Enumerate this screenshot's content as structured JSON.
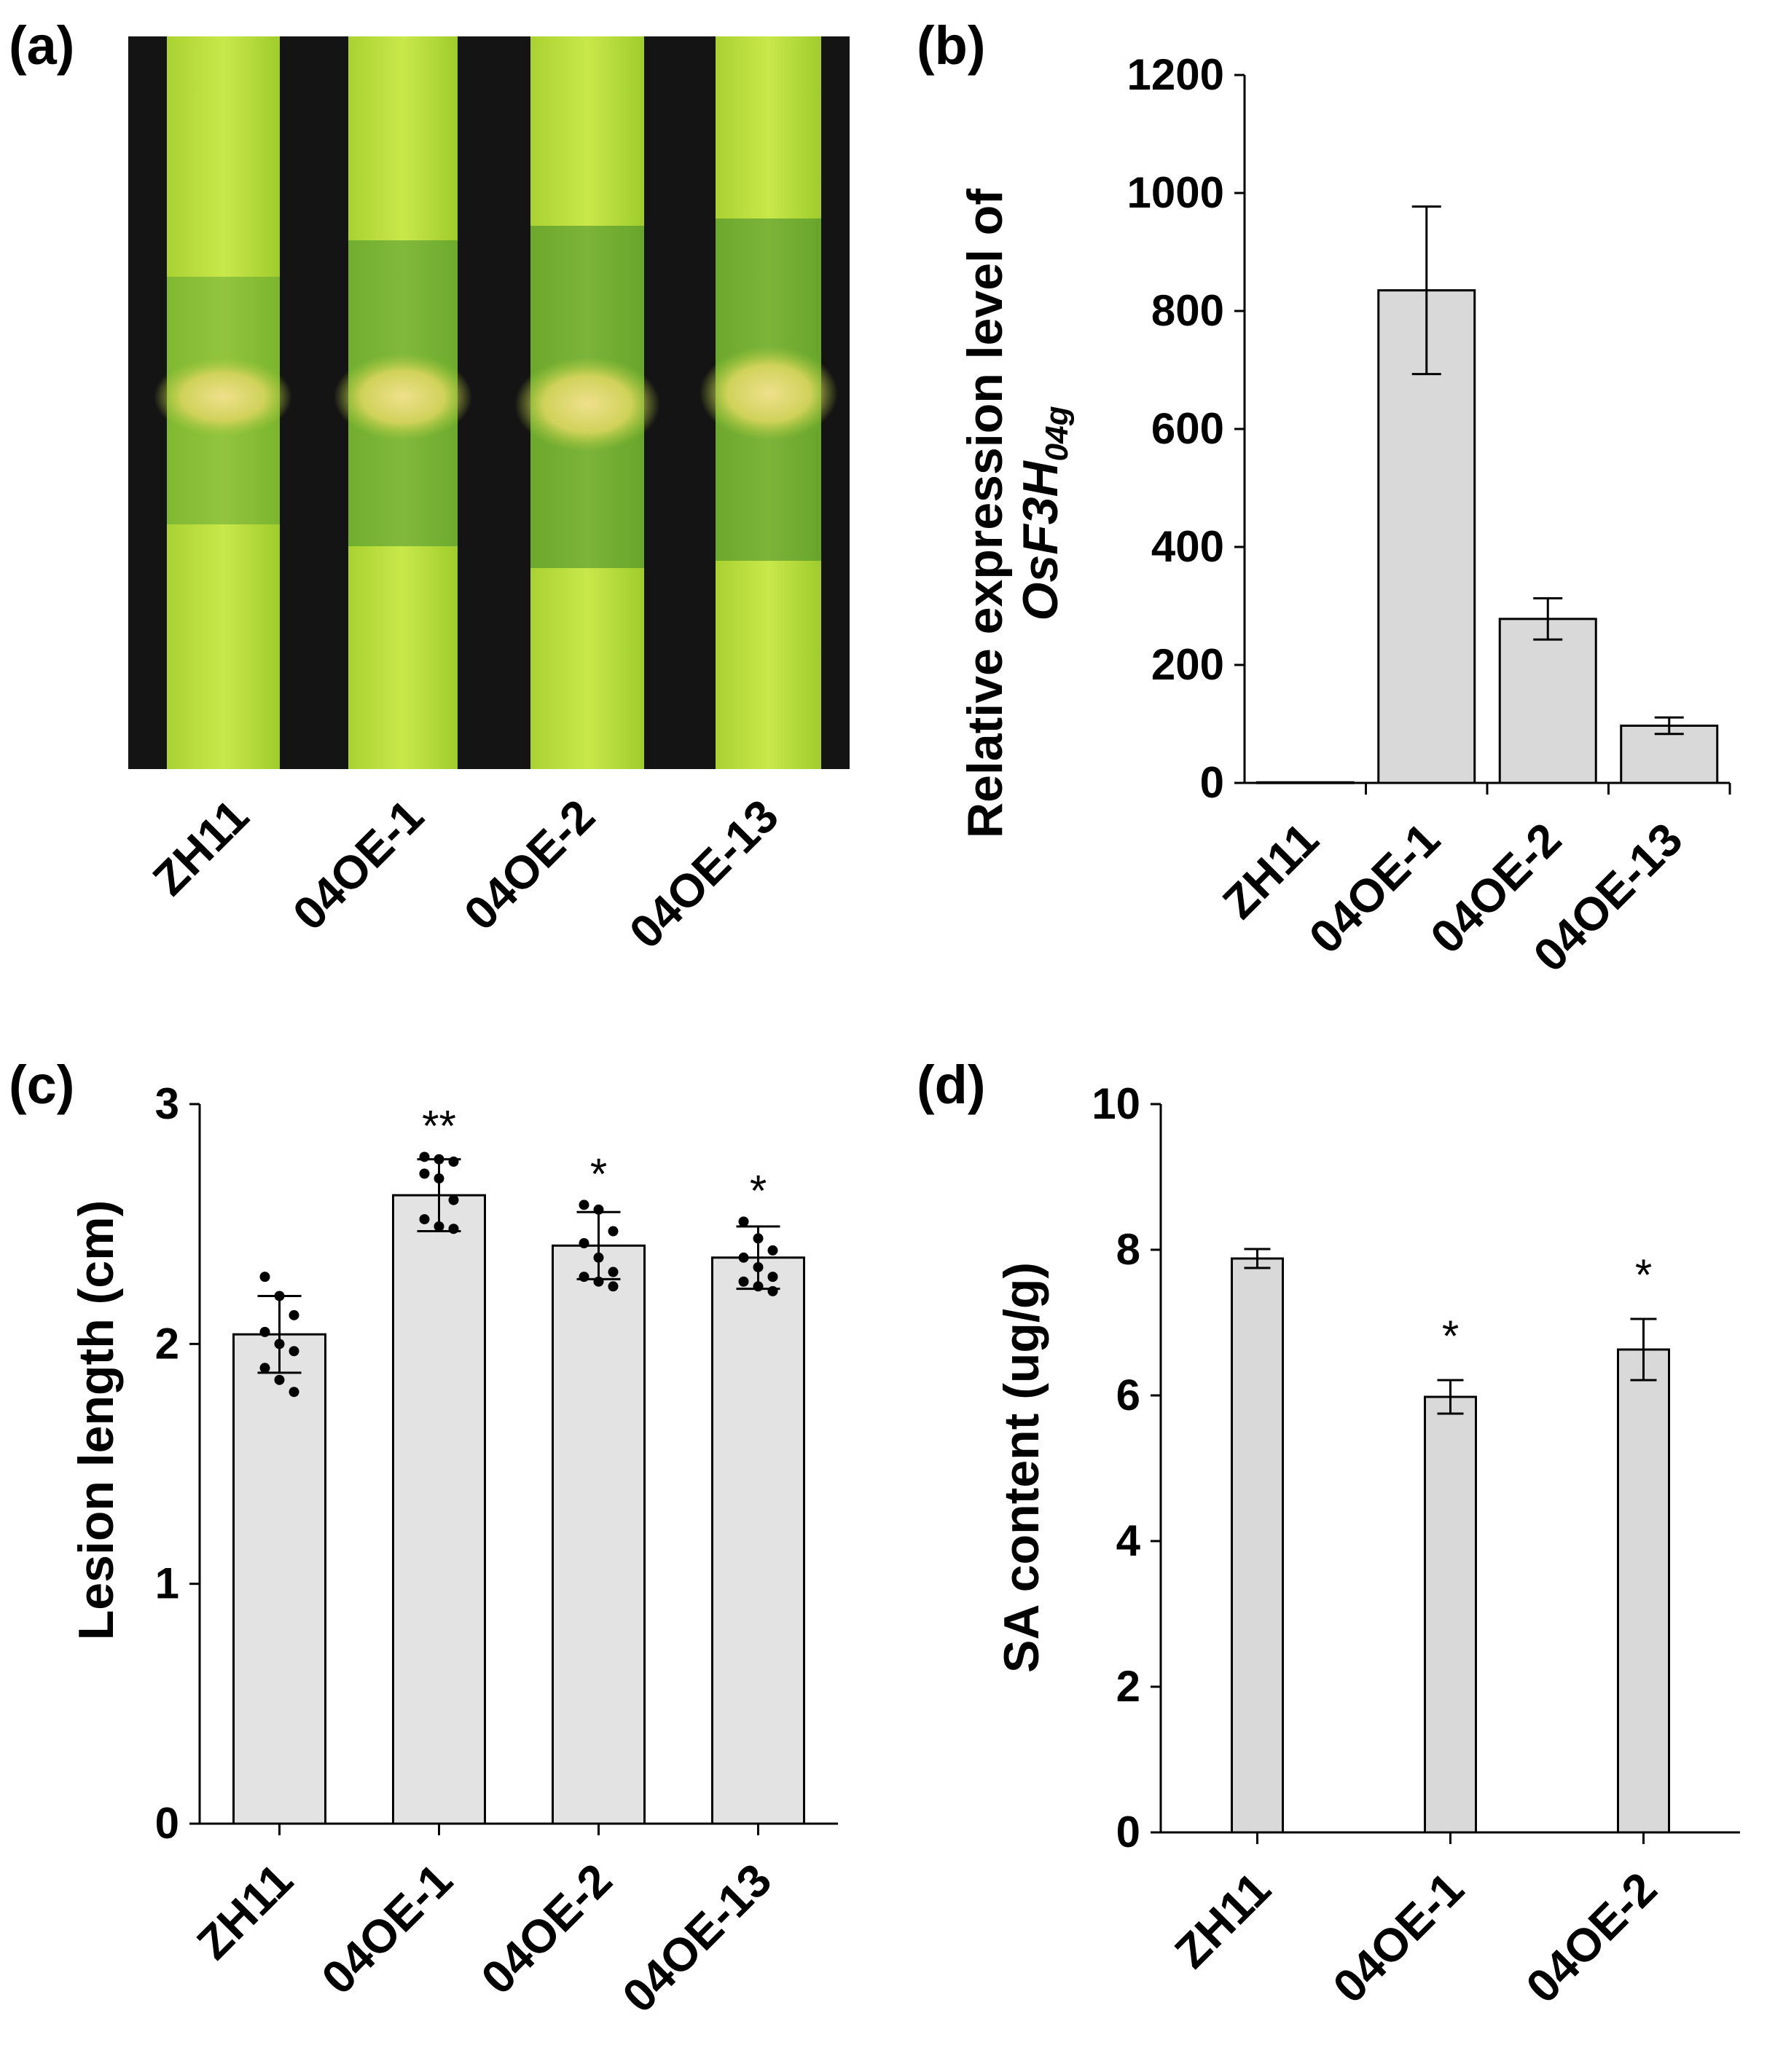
{
  "panels": {
    "a": {
      "label": "(a)",
      "categories": [
        "ZH11",
        "04OE-1",
        "04OE-2",
        "04OE-13"
      ]
    },
    "b": {
      "label": "(b)"
    },
    "c": {
      "label": "(c)"
    },
    "d": {
      "label": "(d)"
    }
  },
  "colors": {
    "bar_fill": "#d9d9d9",
    "bar_fill_c": "#e3e3e3",
    "axis": "#000000",
    "leaf_light": "#c8e63c",
    "leaf_dark": "#1f6a2a",
    "lesion": "#e8d77a",
    "background_strip": "#141414"
  },
  "chart_data": [
    {
      "id": "b",
      "type": "bar",
      "categories": [
        "ZH11",
        "04OE-1",
        "04OE-2",
        "04OE-13"
      ],
      "values": [
        1,
        835,
        278,
        97
      ],
      "errors": [
        1,
        142,
        35,
        14
      ],
      "yticks": [
        "0",
        "200",
        "400",
        "600",
        "800",
        "1000",
        "1200"
      ],
      "ylim": [
        0,
        1200
      ],
      "ylabel_line1": "Relative expression level of",
      "ylabel_gene": "OsF3H",
      "ylabel_subscript": "04g",
      "significance": [
        "",
        "",
        "",
        ""
      ]
    },
    {
      "id": "c",
      "type": "bar",
      "categories": [
        "ZH11",
        "04OE-1",
        "04OE-2",
        "04OE-13"
      ],
      "values": [
        2.04,
        2.62,
        2.41,
        2.36
      ],
      "errors": [
        0.16,
        0.15,
        0.14,
        0.13
      ],
      "points": [
        [
          2.28,
          2.2,
          2.12,
          2.05,
          2.0,
          1.97,
          1.9,
          1.85,
          1.8
        ],
        [
          2.78,
          2.77,
          2.76,
          2.71,
          2.69,
          2.6,
          2.52,
          2.49,
          2.48
        ],
        [
          2.58,
          2.56,
          2.47,
          2.42,
          2.36,
          2.3,
          2.28,
          2.26,
          2.24
        ],
        [
          2.51,
          2.44,
          2.39,
          2.36,
          2.32,
          2.28,
          2.26,
          2.24,
          2.22
        ]
      ],
      "yticks": [
        "0",
        "1",
        "2",
        "3"
      ],
      "ylim": [
        0,
        3
      ],
      "ylabel": "Lesion length (cm)",
      "significance": [
        "",
        "**",
        "*",
        "*"
      ]
    },
    {
      "id": "d",
      "type": "bar",
      "categories": [
        "ZH11",
        "04OE-1",
        "04OE-2"
      ],
      "values": [
        7.88,
        5.98,
        6.63
      ],
      "errors": [
        0.13,
        0.23,
        0.42
      ],
      "yticks": [
        "0",
        "2",
        "4",
        "6",
        "8",
        "10"
      ],
      "ylim": [
        0,
        10
      ],
      "ylabel": "SA content (ug/g)",
      "significance": [
        "",
        "*",
        "*"
      ]
    }
  ]
}
